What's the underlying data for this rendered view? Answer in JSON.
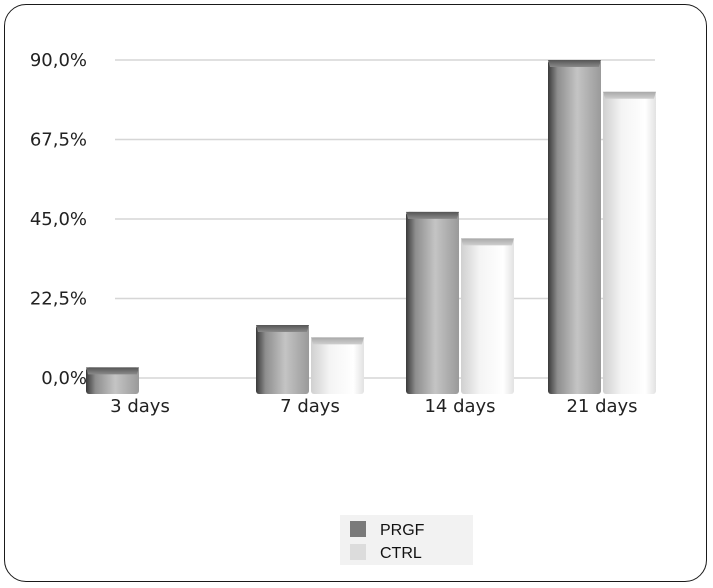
{
  "chart_data": {
    "type": "bar",
    "title": "",
    "xlabel": "",
    "ylabel": "",
    "categories": [
      "3 days",
      "7 days",
      "14 days",
      "21 days"
    ],
    "series": [
      {
        "name": "PRGF",
        "values": [
          3,
          15,
          47,
          90
        ]
      },
      {
        "name": "CTRL",
        "values": [
          0,
          11.5,
          39.5,
          81
        ]
      }
    ],
    "ylim": [
      0,
      90
    ],
    "yticks": [
      "0,0%",
      "22,5%",
      "45,0%",
      "67,5%",
      "90,0%"
    ],
    "ytick_values": [
      0,
      22.5,
      45,
      67.5,
      90
    ],
    "grid": true,
    "legend_position": "bottom-center",
    "colors": {
      "PRGF": "#7a7a7a",
      "CTRL": "#dcdcdc",
      "grid": "#d6d6d6"
    }
  }
}
